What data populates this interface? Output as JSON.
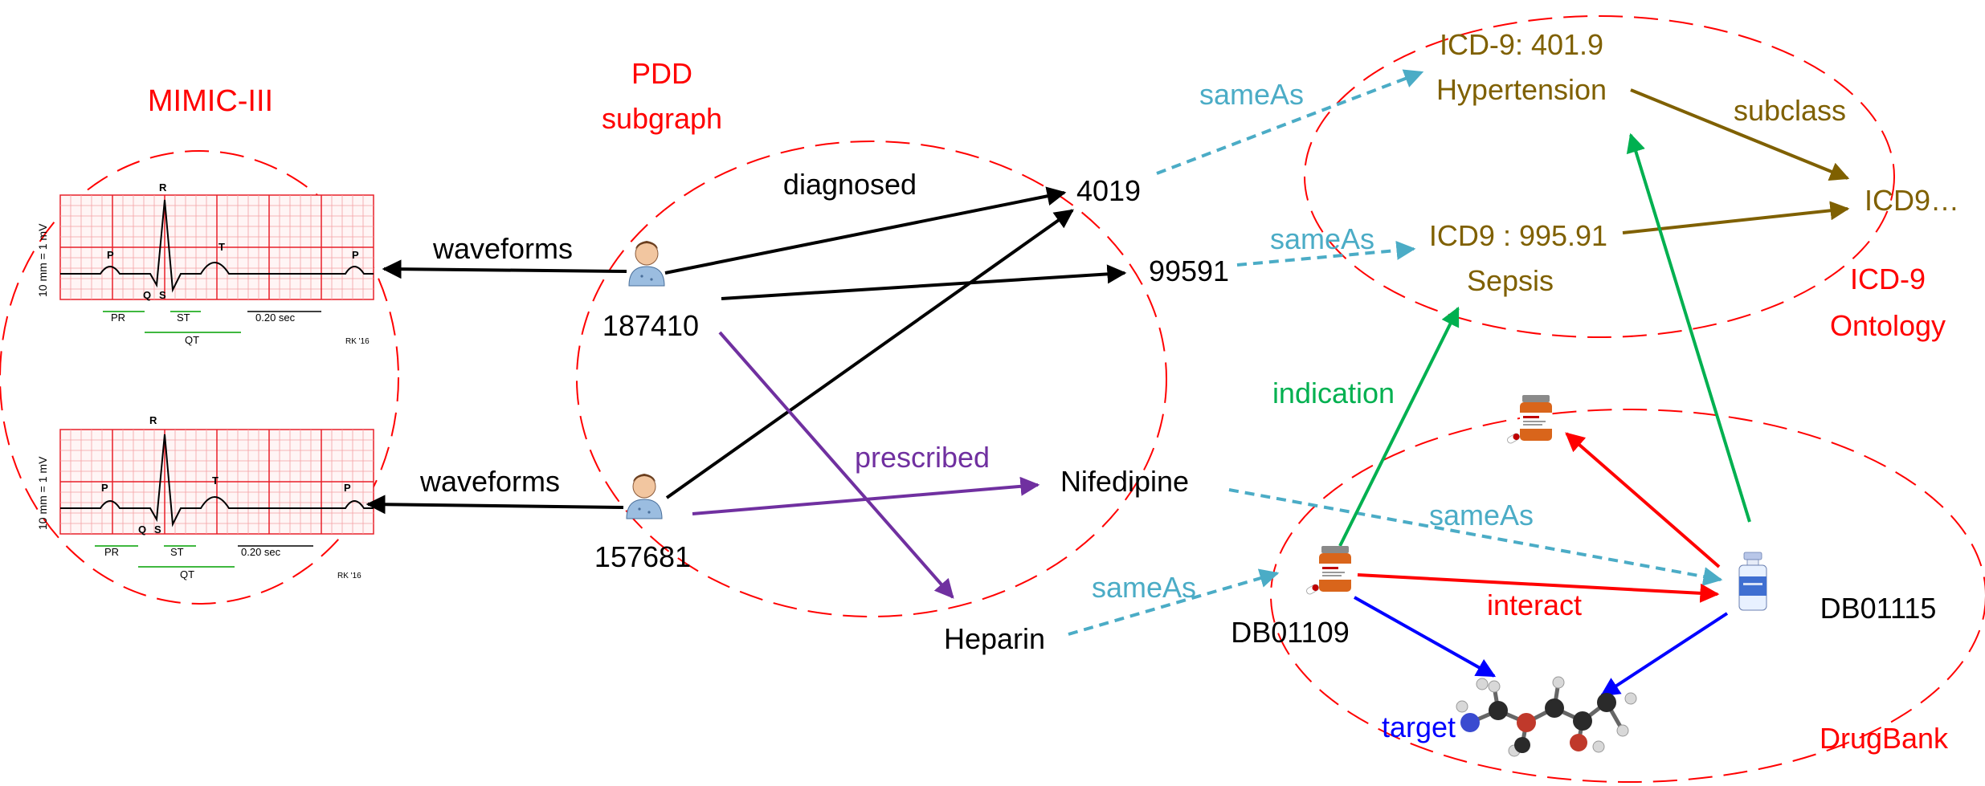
{
  "colors": {
    "black": "#000000",
    "red": "#ff0000",
    "purple": "#7030a0",
    "teal": "#4bacc6",
    "olive": "#7f6000",
    "green": "#00b050",
    "blue": "#0000ff",
    "ecg_grid": "#e8202a"
  },
  "groups": {
    "mimic": "MIMIC-III",
    "pdd_line1": "PDD",
    "pdd_line2": "subgraph",
    "icd_line1": "ICD-9",
    "icd_line2": "Ontology",
    "drugbank": "DrugBank"
  },
  "patients": {
    "p1": "187410",
    "p2": "157681"
  },
  "nodes": {
    "code_4019": "4019",
    "code_99591": "99591",
    "nifedipine": "Nifedipine",
    "heparin": "Heparin",
    "icd_hyp_code": "ICD-9: 401.9",
    "icd_hyp_name": "Hypertension",
    "icd_sepsis_code": "ICD9 : 995.91",
    "icd_sepsis_name": "Sepsis",
    "icd_parent": "ICD9…",
    "db01109": "DB01109",
    "db01115": "DB01115"
  },
  "edges": {
    "waveforms": "waveforms",
    "diagnosed": "diagnosed",
    "prescribed": "prescribed",
    "sameAs": "sameAs",
    "subclass": "subclass",
    "indication": "indication",
    "interact": "interact",
    "target": "target"
  },
  "ecg": {
    "calibration": "10 mm = 1 mV",
    "P": "P",
    "Q": "Q",
    "R": "R",
    "S": "S",
    "T": "T",
    "PR": "PR",
    "ST": "ST",
    "QT": "QT",
    "interval": "0.20 sec",
    "credit": "RK '16"
  },
  "icons": {
    "patient": "patient-icon",
    "pill_bottle": "pill-bottle-icon",
    "vial": "vial-icon",
    "molecule": "molecule-icon"
  }
}
